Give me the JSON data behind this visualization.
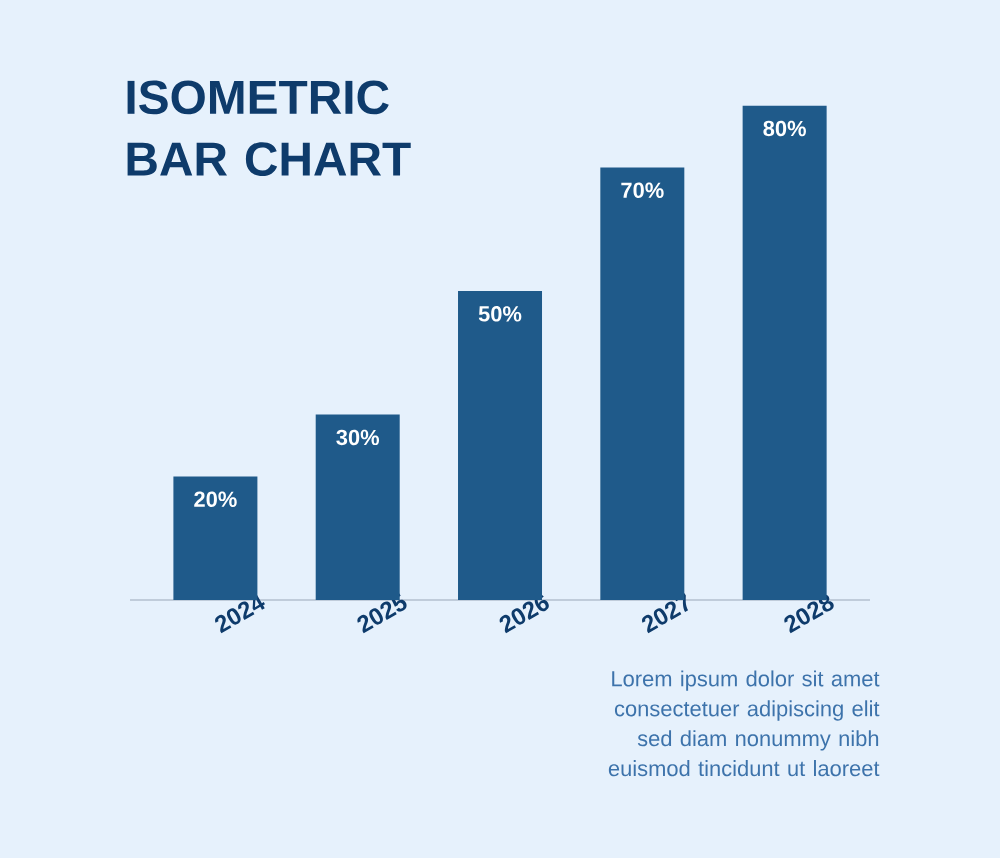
{
  "chart_data": {
    "type": "bar",
    "title": "ISOMETRIC BAR CHART",
    "categories": [
      "2024",
      "2025",
      "2026",
      "2027",
      "2028"
    ],
    "values": [
      20,
      30,
      50,
      70,
      80
    ],
    "color": "#1f5a8a",
    "value_labels": [
      "20%",
      "30%",
      "50%",
      "70%",
      "80%"
    ],
    "annotations": [
      "Lorem ipsum dolor sit amet consectetuer adipiscing elit sed diam nonummy nibh euismod tincidunt ut laoreet"
    ]
  }
}
